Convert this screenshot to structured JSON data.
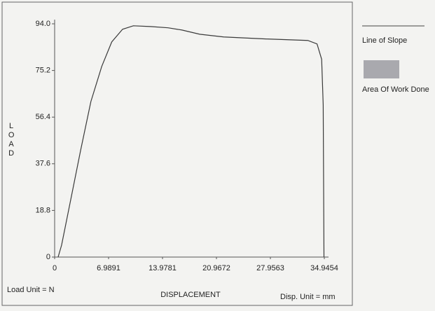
{
  "chart_data": {
    "type": "line",
    "x_label": "DISPLACEMENT",
    "y_label": "LOAD",
    "annotations": [
      "Load Unit = N",
      "Disp. Unit = mm"
    ],
    "legend_items": [
      "Line of Slope",
      "Area Of Work Done"
    ],
    "series": [
      {
        "color": "#3a3a3a",
        "x": [
          0.45,
          0.9,
          2.0,
          3.36,
          4.7,
          6.1,
          7.4,
          8.8,
          10.2,
          12.4,
          14.7,
          16.5,
          18.8,
          21.9,
          27.4,
          32.8,
          34.0,
          34.6,
          34.8,
          34.9
        ],
        "values": [
          0,
          4.8,
          21.8,
          42.9,
          62.7,
          76.8,
          86.7,
          91.8,
          93.2,
          92.9,
          92.4,
          91.5,
          89.8,
          88.7,
          87.9,
          87.3,
          85.9,
          79.7,
          61.3,
          0
        ]
      }
    ],
    "xlim": [
      0,
      34.9454
    ],
    "ylim": [
      0,
      94
    ],
    "xticks": [
      0,
      6.9891,
      13.9781,
      20.9672,
      27.9563,
      34.9454
    ],
    "yticks": [
      0,
      18.8,
      37.6,
      56.4,
      75.2,
      {
        "value": 94,
        "label": "94.0"
      }
    ],
    "area_color": "#a9a9ae"
  }
}
